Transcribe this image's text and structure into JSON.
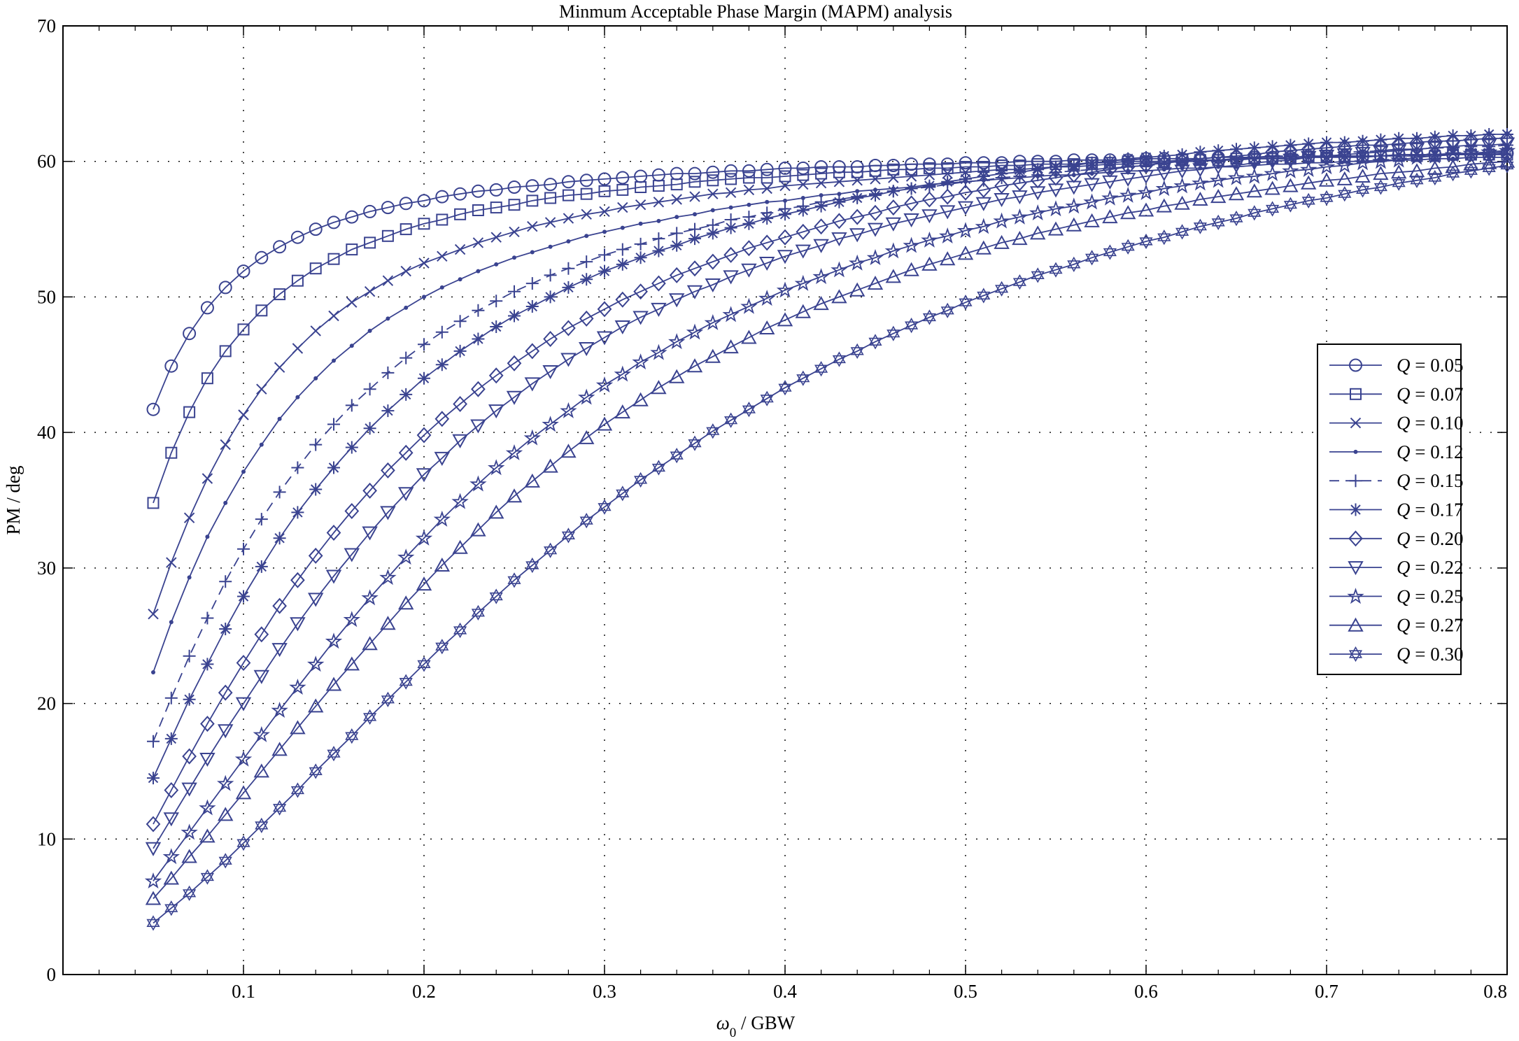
{
  "chart_data": {
    "type": "line",
    "title": "Minmum Acceptable Phase Margin (MAPM) analysis",
    "xlabel": {
      "symbol": "ω",
      "sub": "0",
      "rest": " / GBW"
    },
    "ylabel": "PM / deg",
    "xlim": [
      0,
      0.8
    ],
    "ylim": [
      0,
      70
    ],
    "xticks": [
      0.1,
      0.2,
      0.3,
      0.4,
      0.5,
      0.6,
      0.7,
      0.8
    ],
    "yticks": [
      0,
      10,
      20,
      30,
      40,
      50,
      60,
      70
    ],
    "grid": true,
    "legend_position": "right",
    "line_color": "#3a4390",
    "x": [
      0.05,
      0.06,
      0.07,
      0.08,
      0.09,
      0.1,
      0.11,
      0.12,
      0.13,
      0.14,
      0.15,
      0.16,
      0.17,
      0.18,
      0.19,
      0.2,
      0.21,
      0.22,
      0.23,
      0.24,
      0.25,
      0.26,
      0.27,
      0.28,
      0.29,
      0.3,
      0.31,
      0.32,
      0.33,
      0.34,
      0.35,
      0.36,
      0.37,
      0.38,
      0.39,
      0.4,
      0.41,
      0.42,
      0.43,
      0.44,
      0.45,
      0.46,
      0.47,
      0.48,
      0.49,
      0.5,
      0.51,
      0.52,
      0.53,
      0.54,
      0.55,
      0.56,
      0.57,
      0.58,
      0.59,
      0.6,
      0.61,
      0.62,
      0.63,
      0.64,
      0.65,
      0.66,
      0.67,
      0.68,
      0.69,
      0.7,
      0.71,
      0.72,
      0.73,
      0.74,
      0.75,
      0.76,
      0.77,
      0.78,
      0.79,
      0.8
    ],
    "series": [
      {
        "label": "= 0.05",
        "marker": "circle",
        "values": [
          41.7,
          44.9,
          47.3,
          49.2,
          50.7,
          51.9,
          52.9,
          53.7,
          54.4,
          55.0,
          55.5,
          55.9,
          56.3,
          56.6,
          56.9,
          57.1,
          57.4,
          57.6,
          57.8,
          57.9,
          58.1,
          58.2,
          58.3,
          58.5,
          58.6,
          58.7,
          58.8,
          58.9,
          59.0,
          59.1,
          59.1,
          59.2,
          59.3,
          59.3,
          59.4,
          59.5,
          59.5,
          59.6,
          59.6,
          59.6,
          59.7,
          59.7,
          59.8,
          59.8,
          59.8,
          59.9,
          59.9,
          59.9,
          60.0,
          60.0,
          60.0,
          60.1,
          60.1,
          60.1,
          60.1,
          60.2,
          60.2,
          60.2,
          60.2,
          60.3,
          60.3,
          60.3,
          60.3,
          60.3,
          60.4,
          60.4,
          60.4,
          60.4,
          60.4,
          60.5,
          60.5,
          60.5,
          60.5,
          60.5,
          60.5,
          60.6
        ]
      },
      {
        "label": "= 0.07",
        "marker": "square",
        "values": [
          34.8,
          38.5,
          41.5,
          44.0,
          46.0,
          47.6,
          49.0,
          50.2,
          51.2,
          52.1,
          52.8,
          53.5,
          54.0,
          54.5,
          55.0,
          55.4,
          55.7,
          56.1,
          56.4,
          56.6,
          56.8,
          57.1,
          57.3,
          57.5,
          57.6,
          57.8,
          57.9,
          58.1,
          58.2,
          58.3,
          58.5,
          58.6,
          58.7,
          58.8,
          58.8,
          58.9,
          59.0,
          59.1,
          59.2,
          59.2,
          59.3,
          59.4,
          59.4,
          59.5,
          59.5,
          59.6,
          59.6,
          59.7,
          59.7,
          59.8,
          59.8,
          59.8,
          59.9,
          59.9,
          60.0,
          60.0,
          60.0,
          60.1,
          60.1,
          60.1,
          60.2,
          60.2,
          60.2,
          60.2,
          60.3,
          60.3,
          60.3,
          60.3,
          60.4,
          60.4,
          60.4,
          60.4,
          60.5,
          60.5,
          60.5,
          60.5
        ]
      },
      {
        "label": "= 0.10",
        "marker": "x",
        "values": [
          26.6,
          30.4,
          33.7,
          36.6,
          39.1,
          41.3,
          43.2,
          44.8,
          46.2,
          47.5,
          48.6,
          49.6,
          50.4,
          51.2,
          51.9,
          52.5,
          53.0,
          53.5,
          54.0,
          54.4,
          54.8,
          55.2,
          55.5,
          55.8,
          56.1,
          56.3,
          56.6,
          56.8,
          57.0,
          57.2,
          57.4,
          57.6,
          57.7,
          57.9,
          58.0,
          58.2,
          58.3,
          58.4,
          58.5,
          58.6,
          58.7,
          58.8,
          58.9,
          59.0,
          59.1,
          59.2,
          59.3,
          59.4,
          59.4,
          59.5,
          59.6,
          59.6,
          59.7,
          59.8,
          59.8,
          59.9,
          59.9,
          60.0,
          60.0,
          60.1,
          60.1,
          60.2,
          60.2,
          60.2,
          60.3,
          60.3,
          60.4,
          60.4,
          60.4,
          60.5,
          60.5,
          60.5,
          60.6,
          60.6,
          60.6,
          60.7
        ]
      },
      {
        "label": "= 0.12",
        "marker": "dot",
        "values": [
          22.3,
          26.0,
          29.3,
          32.3,
          34.8,
          37.1,
          39.1,
          41.0,
          42.6,
          44.0,
          45.3,
          46.4,
          47.5,
          48.4,
          49.2,
          50.0,
          50.7,
          51.3,
          51.9,
          52.4,
          52.9,
          53.3,
          53.7,
          54.1,
          54.5,
          54.8,
          55.1,
          55.4,
          55.6,
          55.9,
          56.1,
          56.4,
          56.6,
          56.8,
          57.0,
          57.1,
          57.3,
          57.5,
          57.6,
          57.8,
          57.9,
          58.0,
          58.1,
          58.3,
          58.4,
          58.5,
          58.6,
          58.7,
          58.8,
          58.9,
          59.0,
          59.0,
          59.1,
          59.2,
          59.3,
          59.3,
          59.4,
          59.5,
          59.5,
          59.6,
          59.6,
          59.7,
          59.8,
          59.8,
          59.9,
          59.9,
          60.0,
          60.0,
          60.1,
          60.1,
          60.1,
          60.2,
          60.2,
          60.3,
          60.3,
          60.3
        ]
      },
      {
        "label": "= 0.15",
        "marker": "plus",
        "dashed": true,
        "values": [
          17.2,
          20.4,
          23.5,
          26.3,
          29.0,
          31.4,
          33.6,
          35.6,
          37.4,
          39.1,
          40.6,
          42.0,
          43.2,
          44.4,
          45.5,
          46.5,
          47.4,
          48.2,
          49.0,
          49.7,
          50.4,
          51.0,
          51.6,
          52.1,
          52.6,
          53.1,
          53.5,
          53.9,
          54.3,
          54.7,
          55.0,
          55.3,
          55.7,
          55.9,
          56.2,
          56.5,
          56.7,
          57.0,
          57.2,
          57.4,
          57.6,
          57.8,
          58.0,
          58.1,
          58.3,
          58.5,
          58.6,
          58.8,
          58.9,
          59.0,
          59.2,
          59.3,
          59.4,
          59.5,
          59.6,
          59.7,
          59.8,
          59.9,
          60.0,
          60.1,
          60.2,
          60.3,
          60.4,
          60.4,
          60.5,
          60.6,
          60.7,
          60.7,
          60.8,
          60.9,
          60.9,
          61.0,
          61.0,
          61.1,
          61.1,
          61.2
        ]
      },
      {
        "label": "= 0.17",
        "marker": "asterisk",
        "values": [
          14.5,
          17.4,
          20.3,
          22.9,
          25.5,
          27.9,
          30.1,
          32.2,
          34.1,
          35.8,
          37.4,
          38.9,
          40.3,
          41.6,
          42.8,
          44.0,
          45.0,
          46.0,
          46.9,
          47.8,
          48.6,
          49.3,
          50.0,
          50.7,
          51.3,
          51.9,
          52.4,
          52.9,
          53.4,
          53.8,
          54.3,
          54.7,
          55.1,
          55.4,
          55.8,
          56.1,
          56.4,
          56.7,
          57.0,
          57.3,
          57.5,
          57.8,
          58.0,
          58.2,
          58.5,
          58.7,
          58.9,
          59.1,
          59.2,
          59.4,
          59.6,
          59.7,
          59.9,
          60.0,
          60.2,
          60.3,
          60.4,
          60.5,
          60.7,
          60.8,
          60.9,
          61.0,
          61.1,
          61.2,
          61.3,
          61.4,
          61.4,
          61.5,
          61.6,
          61.7,
          61.7,
          61.8,
          61.9,
          61.9,
          62.0,
          62.0
        ]
      },
      {
        "label": "= 0.20",
        "marker": "diamond",
        "values": [
          11.1,
          13.6,
          16.1,
          18.5,
          20.8,
          23.0,
          25.1,
          27.2,
          29.1,
          30.9,
          32.6,
          34.2,
          35.7,
          37.2,
          38.5,
          39.8,
          41.0,
          42.1,
          43.2,
          44.2,
          45.1,
          46.0,
          46.9,
          47.7,
          48.4,
          49.1,
          49.8,
          50.4,
          51.0,
          51.6,
          52.1,
          52.6,
          53.1,
          53.6,
          54.0,
          54.4,
          54.8,
          55.2,
          55.6,
          55.9,
          56.2,
          56.6,
          56.9,
          57.2,
          57.4,
          57.7,
          57.9,
          58.2,
          58.4,
          58.6,
          58.8,
          59.0,
          59.2,
          59.4,
          59.6,
          59.7,
          59.9,
          60.0,
          60.2,
          60.3,
          60.4,
          60.5,
          60.7,
          60.8,
          60.9,
          61.0,
          61.1,
          61.2,
          61.2,
          61.3,
          61.4,
          61.5,
          61.5,
          61.6,
          61.7,
          61.7
        ]
      },
      {
        "label": "= 0.22",
        "marker": "triangle-down",
        "values": [
          9.3,
          11.5,
          13.7,
          15.9,
          18.0,
          20.0,
          22.0,
          24.0,
          25.9,
          27.7,
          29.4,
          31.0,
          32.6,
          34.1,
          35.5,
          36.9,
          38.1,
          39.4,
          40.5,
          41.6,
          42.6,
          43.6,
          44.5,
          45.4,
          46.2,
          47.0,
          47.8,
          48.5,
          49.1,
          49.8,
          50.4,
          50.9,
          51.5,
          52.0,
          52.5,
          53.0,
          53.4,
          53.8,
          54.3,
          54.6,
          55.0,
          55.4,
          55.7,
          56.0,
          56.3,
          56.6,
          56.9,
          57.2,
          57.4,
          57.7,
          57.9,
          58.1,
          58.3,
          58.5,
          58.7,
          58.9,
          59.1,
          59.3,
          59.4,
          59.6,
          59.7,
          59.9,
          60.0,
          60.1,
          60.3,
          60.4,
          60.5,
          60.6,
          60.7,
          60.8,
          60.9,
          61.0,
          61.1,
          61.2,
          61.2,
          61.3
        ]
      },
      {
        "label": "= 0.25",
        "marker": "star",
        "values": [
          6.9,
          8.7,
          10.5,
          12.3,
          14.1,
          15.9,
          17.7,
          19.5,
          21.2,
          22.9,
          24.6,
          26.2,
          27.8,
          29.3,
          30.8,
          32.2,
          33.6,
          34.9,
          36.2,
          37.4,
          38.5,
          39.6,
          40.6,
          41.6,
          42.6,
          43.5,
          44.3,
          45.2,
          45.9,
          46.7,
          47.4,
          48.1,
          48.7,
          49.3,
          49.9,
          50.5,
          51.0,
          51.5,
          52.0,
          52.5,
          52.9,
          53.4,
          53.8,
          54.2,
          54.5,
          54.9,
          55.2,
          55.6,
          55.9,
          56.2,
          56.5,
          56.7,
          57.0,
          57.3,
          57.5,
          57.7,
          58.0,
          58.2,
          58.4,
          58.6,
          58.8,
          58.9,
          59.1,
          59.3,
          59.4,
          59.6,
          59.7,
          59.9,
          60.0,
          60.1,
          60.3,
          60.4,
          60.5,
          60.6,
          60.7,
          60.8
        ]
      },
      {
        "label": "= 0.27",
        "marker": "triangle-up",
        "values": [
          5.6,
          7.1,
          8.7,
          10.2,
          11.8,
          13.4,
          15.0,
          16.6,
          18.2,
          19.8,
          21.4,
          22.9,
          24.4,
          25.9,
          27.4,
          28.8,
          30.2,
          31.5,
          32.8,
          34.1,
          35.3,
          36.4,
          37.5,
          38.6,
          39.6,
          40.6,
          41.5,
          42.4,
          43.3,
          44.1,
          44.9,
          45.6,
          46.3,
          47.0,
          47.7,
          48.3,
          48.9,
          49.5,
          50.0,
          50.5,
          51.0,
          51.5,
          52.0,
          52.4,
          52.8,
          53.2,
          53.6,
          54.0,
          54.3,
          54.7,
          55.0,
          55.3,
          55.6,
          55.9,
          56.2,
          56.4,
          56.7,
          56.9,
          57.2,
          57.4,
          57.6,
          57.8,
          58.0,
          58.2,
          58.4,
          58.6,
          58.7,
          58.9,
          59.1,
          59.2,
          59.3,
          59.5,
          59.6,
          59.8,
          59.9,
          60.0
        ]
      },
      {
        "label": "= 0.30",
        "marker": "hexagram",
        "values": [
          3.8,
          4.9,
          6.0,
          7.2,
          8.4,
          9.7,
          11.0,
          12.3,
          13.6,
          15.0,
          16.3,
          17.6,
          19.0,
          20.3,
          21.6,
          22.9,
          24.2,
          25.4,
          26.7,
          27.9,
          29.1,
          30.2,
          31.3,
          32.4,
          33.5,
          34.5,
          35.5,
          36.5,
          37.4,
          38.3,
          39.2,
          40.1,
          40.9,
          41.7,
          42.5,
          43.3,
          44.0,
          44.7,
          45.4,
          46.0,
          46.7,
          47.3,
          47.9,
          48.5,
          49.0,
          49.6,
          50.1,
          50.6,
          51.1,
          51.6,
          52.0,
          52.4,
          52.9,
          53.3,
          53.7,
          54.1,
          54.4,
          54.8,
          55.2,
          55.5,
          55.8,
          56.2,
          56.5,
          56.8,
          57.1,
          57.3,
          57.6,
          57.9,
          58.1,
          58.4,
          58.6,
          58.8,
          59.1,
          59.3,
          59.5,
          59.7
        ]
      }
    ]
  }
}
